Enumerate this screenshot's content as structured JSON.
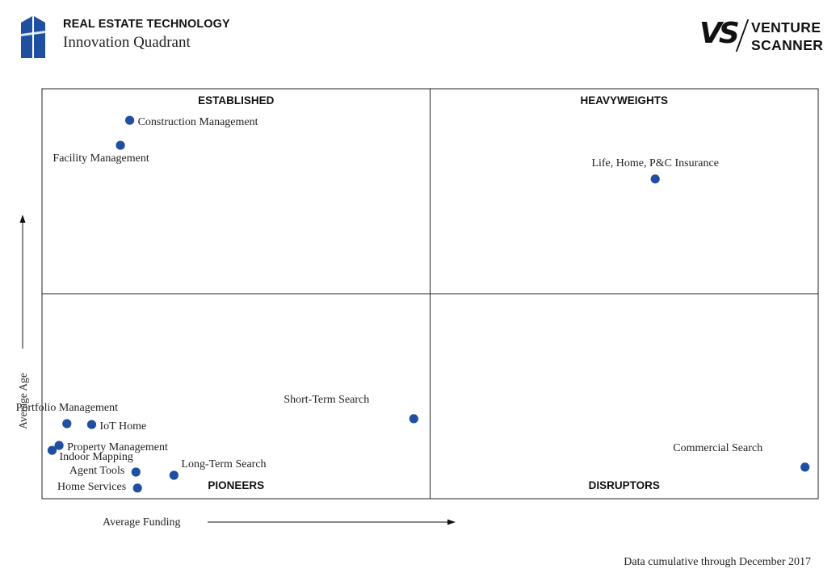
{
  "header": {
    "title": "REAL ESTATE TECHNOLOGY",
    "subtitle": "Innovation Quadrant"
  },
  "brand": {
    "mark": "VS",
    "line1": "VENTURE",
    "line2": "SCANNER",
    "logo_color": "#1f4fa0"
  },
  "footer": {
    "note": "Data cumulative through December 2017"
  },
  "chart_data": {
    "type": "scatter",
    "xlabel": "Average Funding",
    "ylabel": "Average Age",
    "xlim": [
      0,
      100
    ],
    "ylim": [
      0,
      100
    ],
    "grid": false,
    "dot_color": "#1f4fa0",
    "quadrants": [
      {
        "name": "ESTABLISHED",
        "position": "top-left"
      },
      {
        "name": "HEAVYWEIGHTS",
        "position": "top-right"
      },
      {
        "name": "PIONEERS",
        "position": "bottom-left"
      },
      {
        "name": "DISRUPTORS",
        "position": "bottom-right"
      }
    ],
    "points": [
      {
        "label": "Construction Management",
        "x": 11.3,
        "y": 92.3,
        "label_side": "right"
      },
      {
        "label": "Facility Management",
        "x": 10.1,
        "y": 86.2,
        "label_side": "below"
      },
      {
        "label": "Life, Home, P&C Insurance",
        "x": 79.0,
        "y": 78.0,
        "label_side": "above"
      },
      {
        "label": "Short-Term Search",
        "x": 47.9,
        "y": 19.5,
        "label_side": "above-left"
      },
      {
        "label": "Portfolio Management",
        "x": 3.2,
        "y": 18.3,
        "label_side": "above"
      },
      {
        "label": "IoT Home",
        "x": 6.4,
        "y": 18.1,
        "label_side": "right"
      },
      {
        "label": "Property Management",
        "x": 2.2,
        "y": 13.0,
        "label_side": "right"
      },
      {
        "label": "Indoor Mapping",
        "x": 1.3,
        "y": 11.8,
        "label_side": "below-right"
      },
      {
        "label": "Agent Tools",
        "x": 12.1,
        "y": 6.5,
        "label_side": "left"
      },
      {
        "label": "Long-Term Search",
        "x": 17.0,
        "y": 5.7,
        "label_side": "above-right"
      },
      {
        "label": "Home Services",
        "x": 12.3,
        "y": 2.6,
        "label_side": "left"
      },
      {
        "label": "Commercial Search",
        "x": 98.3,
        "y": 7.7,
        "label_side": "above-left"
      }
    ]
  }
}
